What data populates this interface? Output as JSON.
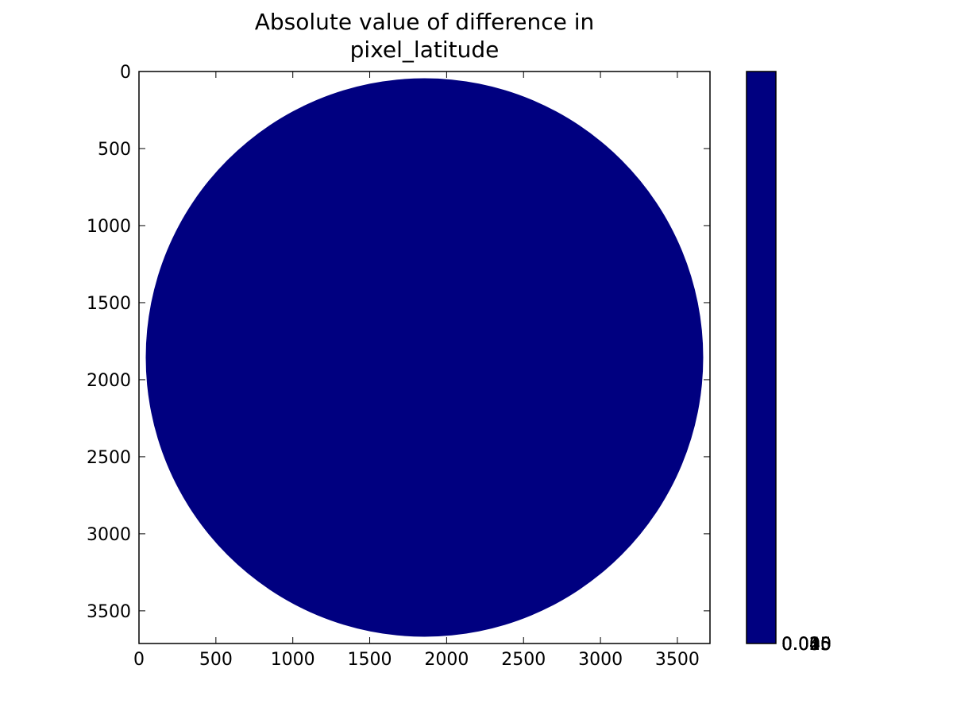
{
  "chart_data": {
    "type": "heatmap",
    "title_lines": [
      "Absolute value of difference in",
      "pixel_latitude"
    ],
    "xlim": [
      0,
      3712
    ],
    "ylim": [
      3712,
      0
    ],
    "x_ticks": [
      0,
      500,
      1000,
      1500,
      2000,
      2500,
      3000,
      3500
    ],
    "y_ticks": [
      0,
      500,
      1000,
      1500,
      2000,
      2500,
      3000,
      3500
    ],
    "disk": {
      "center_x": 1856,
      "center_y": 1856,
      "radius": 1812,
      "value": 0,
      "color": "#000080"
    },
    "colorbar": {
      "color": "#000080",
      "tick_labels": [
        "0.000",
        "0.005",
        "0.010",
        "0.015",
        "0.020",
        "0.025",
        "0.030",
        "0.035",
        "0.040",
        "0.045"
      ]
    },
    "grid": false
  }
}
